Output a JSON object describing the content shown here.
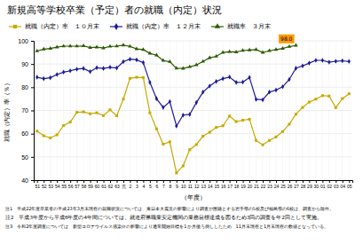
{
  "chart_data": {
    "type": "line",
    "title": "新規高等学校卒業（予定）者の就職（内定）状況",
    "xlabel": "（年度）",
    "ylabel": "就職（内定）率（％）",
    "categories": [
      "51",
      "52",
      "53",
      "54",
      "55",
      "56",
      "57",
      "58",
      "59",
      "60",
      "61",
      "62",
      "63",
      "元",
      "2",
      "3",
      "4",
      "5",
      "6",
      "7",
      "8",
      "9",
      "10",
      "11",
      "12",
      "13",
      "14",
      "15",
      "16",
      "17",
      "18",
      "19",
      "20",
      "21",
      "22",
      "23",
      "24",
      "25",
      "26",
      "27",
      "28",
      "29",
      "30",
      "01",
      "02",
      "03",
      "04",
      "05"
    ],
    "ylim": [
      40,
      100
    ],
    "yticks": [
      40,
      50,
      60,
      70,
      80,
      90,
      100
    ],
    "grid": true,
    "series": [
      {
        "name": "就職（内定）率　１０月末",
        "color": "#c8a800",
        "marker": "square",
        "values": [
          61.1,
          59.1,
          58.2,
          59.5,
          63.5,
          65.0,
          69.2,
          69.4,
          68.6,
          69.0,
          67.8,
          70.3,
          67.7,
          74.9,
          83.8,
          84.3,
          84.2,
          69.0,
          62.1,
          55.5,
          56.5,
          43.1,
          46.1,
          53.1,
          55.3,
          58.9,
          60.6,
          62.7,
          63.4,
          67.6,
          65.2,
          65.8,
          66.2,
          57.1,
          55.2,
          57.1,
          58.6,
          60.9,
          64.1,
          68.4,
          71.3,
          73.6,
          74.9,
          76.4,
          76.2,
          71.2,
          75.1,
          77.2
        ]
      },
      {
        "name": "就職（内定）率　１２月末",
        "color": "#1a1a99",
        "marker": "diamond",
        "values": [
          84.3,
          83.7,
          84.1,
          85.5,
          86.5,
          87.1,
          87.8,
          88.1,
          86.7,
          88.4,
          88.1,
          88.6,
          88.3,
          91.0,
          92.1,
          91.8,
          90.6,
          82.1,
          75.1,
          71.3,
          73.8,
          63.3,
          68.0,
          68.3,
          73.4,
          77.9,
          80.5,
          82.5,
          83.7,
          84.4,
          82.1,
          82.2,
          84.2,
          74.8,
          74.6,
          77.9,
          78.8,
          80.2,
          83.4,
          88.2,
          89.2,
          90.4,
          91.6,
          91.6,
          90.8,
          91.2,
          91.4,
          91.1
        ]
      },
      {
        "name": "就職率　３月末",
        "color": "#2d5a00",
        "marker": "triangle",
        "values": [
          95.6,
          96.4,
          96.7,
          97.3,
          97.7,
          97.7,
          97.7,
          97.8,
          97.1,
          97.3,
          96.9,
          97.6,
          97.7,
          98.1,
          97.6,
          96.5,
          96.2,
          94.6,
          93.8,
          91.5,
          91.0,
          88.2,
          88.1,
          88.8,
          89.6,
          91.1,
          92.7,
          93.3,
          95.0,
          95.3,
          95.2,
          95.8,
          96.0,
          96.2,
          95.0,
          95.7,
          96.2,
          96.7,
          97.5,
          98.0,
          null,
          null,
          null,
          null,
          null,
          null,
          null,
          null
        ]
      }
    ],
    "annotations": [
      {
        "text": "98.0",
        "x": "27",
        "y": 98.0,
        "color": "#ff9900"
      }
    ],
    "notes": [
      "注1　平成22年度卒業者の平成23年3月末現在の就職状況については、東日本大震災の影響により調査が困難とする岩手県の5校及び福島県の6校は、調査から除外。",
      "注2　平成3年度から平成6年度の4年間については、就道府県職業安定機関の業務目標達成を図るため3回の調査を年2回として実施。",
      "注3　令和2年度調査については、新型コロナウイルス感染症の影響により通常開始目標を1か月後ろ倒ししたため、11月末現在と1月末現在の数値となっている。"
    ]
  }
}
